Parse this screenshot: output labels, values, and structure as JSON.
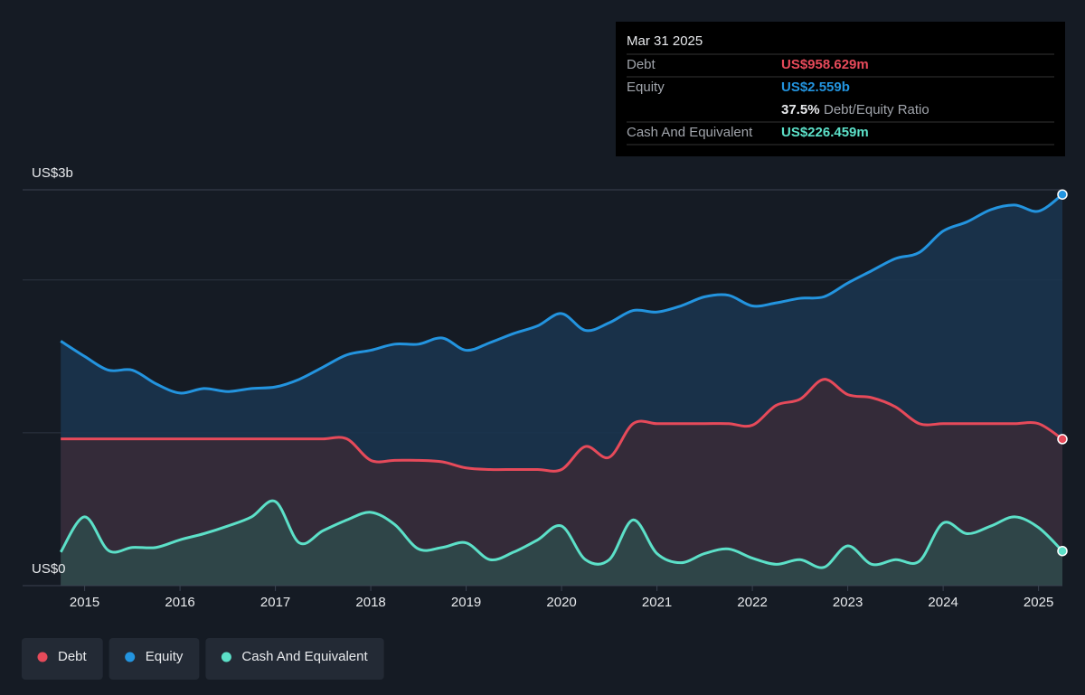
{
  "chart_data": {
    "type": "line",
    "y_max_label": "US$3b",
    "ylim": [
      0,
      2.59
    ],
    "yticks": [
      {
        "value": 0,
        "label": "US$0"
      }
    ],
    "gridlines": [
      1,
      2
    ],
    "xlim": [
      2014.35,
      2025.25
    ],
    "xticks": [
      2015,
      2016,
      2017,
      2018,
      2019,
      2020,
      2021,
      2022,
      2023,
      2024,
      2025
    ],
    "x": [
      2014.75,
      2015,
      2015.25,
      2015.5,
      2015.75,
      2016,
      2016.25,
      2016.5,
      2016.75,
      2017,
      2017.25,
      2017.5,
      2017.75,
      2018,
      2018.25,
      2018.5,
      2018.75,
      2019,
      2019.25,
      2019.5,
      2019.75,
      2020,
      2020.25,
      2020.5,
      2020.75,
      2021,
      2021.25,
      2021.5,
      2021.75,
      2022,
      2022.25,
      2022.5,
      2022.75,
      2023,
      2023.25,
      2023.5,
      2023.75,
      2024,
      2024.25,
      2024.5,
      2024.75,
      2025,
      2025.25
    ],
    "series": [
      {
        "name": "Equity",
        "color": "#2394df",
        "fill": "#1a3550",
        "values": [
          1.6,
          1.5,
          1.41,
          1.41,
          1.32,
          1.26,
          1.29,
          1.27,
          1.29,
          1.3,
          1.35,
          1.43,
          1.51,
          1.54,
          1.58,
          1.58,
          1.62,
          1.54,
          1.59,
          1.65,
          1.7,
          1.78,
          1.67,
          1.72,
          1.8,
          1.79,
          1.83,
          1.89,
          1.9,
          1.83,
          1.85,
          1.88,
          1.89,
          1.98,
          2.06,
          2.14,
          2.18,
          2.32,
          2.38,
          2.46,
          2.49,
          2.45,
          2.559
        ]
      },
      {
        "name": "Debt",
        "color": "#e64a5a",
        "fill": "#3a2a36",
        "values": [
          0.96,
          0.96,
          0.96,
          0.96,
          0.96,
          0.96,
          0.96,
          0.96,
          0.96,
          0.96,
          0.96,
          0.96,
          0.96,
          0.82,
          0.82,
          0.82,
          0.81,
          0.77,
          0.76,
          0.76,
          0.76,
          0.76,
          0.91,
          0.84,
          1.06,
          1.06,
          1.06,
          1.06,
          1.06,
          1.05,
          1.18,
          1.22,
          1.35,
          1.25,
          1.23,
          1.17,
          1.06,
          1.06,
          1.06,
          1.06,
          1.06,
          1.06,
          0.958629
        ]
      },
      {
        "name": "Cash And Equivalent",
        "color": "#5ce0c8",
        "fill": "#2f4a4b",
        "values": [
          0.22,
          0.45,
          0.23,
          0.25,
          0.25,
          0.3,
          0.34,
          0.39,
          0.45,
          0.55,
          0.28,
          0.36,
          0.43,
          0.48,
          0.4,
          0.24,
          0.25,
          0.28,
          0.17,
          0.22,
          0.3,
          0.39,
          0.17,
          0.17,
          0.43,
          0.21,
          0.15,
          0.21,
          0.24,
          0.18,
          0.14,
          0.17,
          0.12,
          0.26,
          0.14,
          0.17,
          0.16,
          0.41,
          0.34,
          0.39,
          0.45,
          0.38,
          0.226459
        ]
      }
    ],
    "legend_order": [
      1,
      0,
      2
    ],
    "tooltip": {
      "date": "Mar 31 2025",
      "debt": "US$958.629m",
      "equity": "US$2.559b",
      "ratio": "37.5%",
      "ratio_label": "Debt/Equity Ratio",
      "cash": "US$226.459m"
    }
  }
}
